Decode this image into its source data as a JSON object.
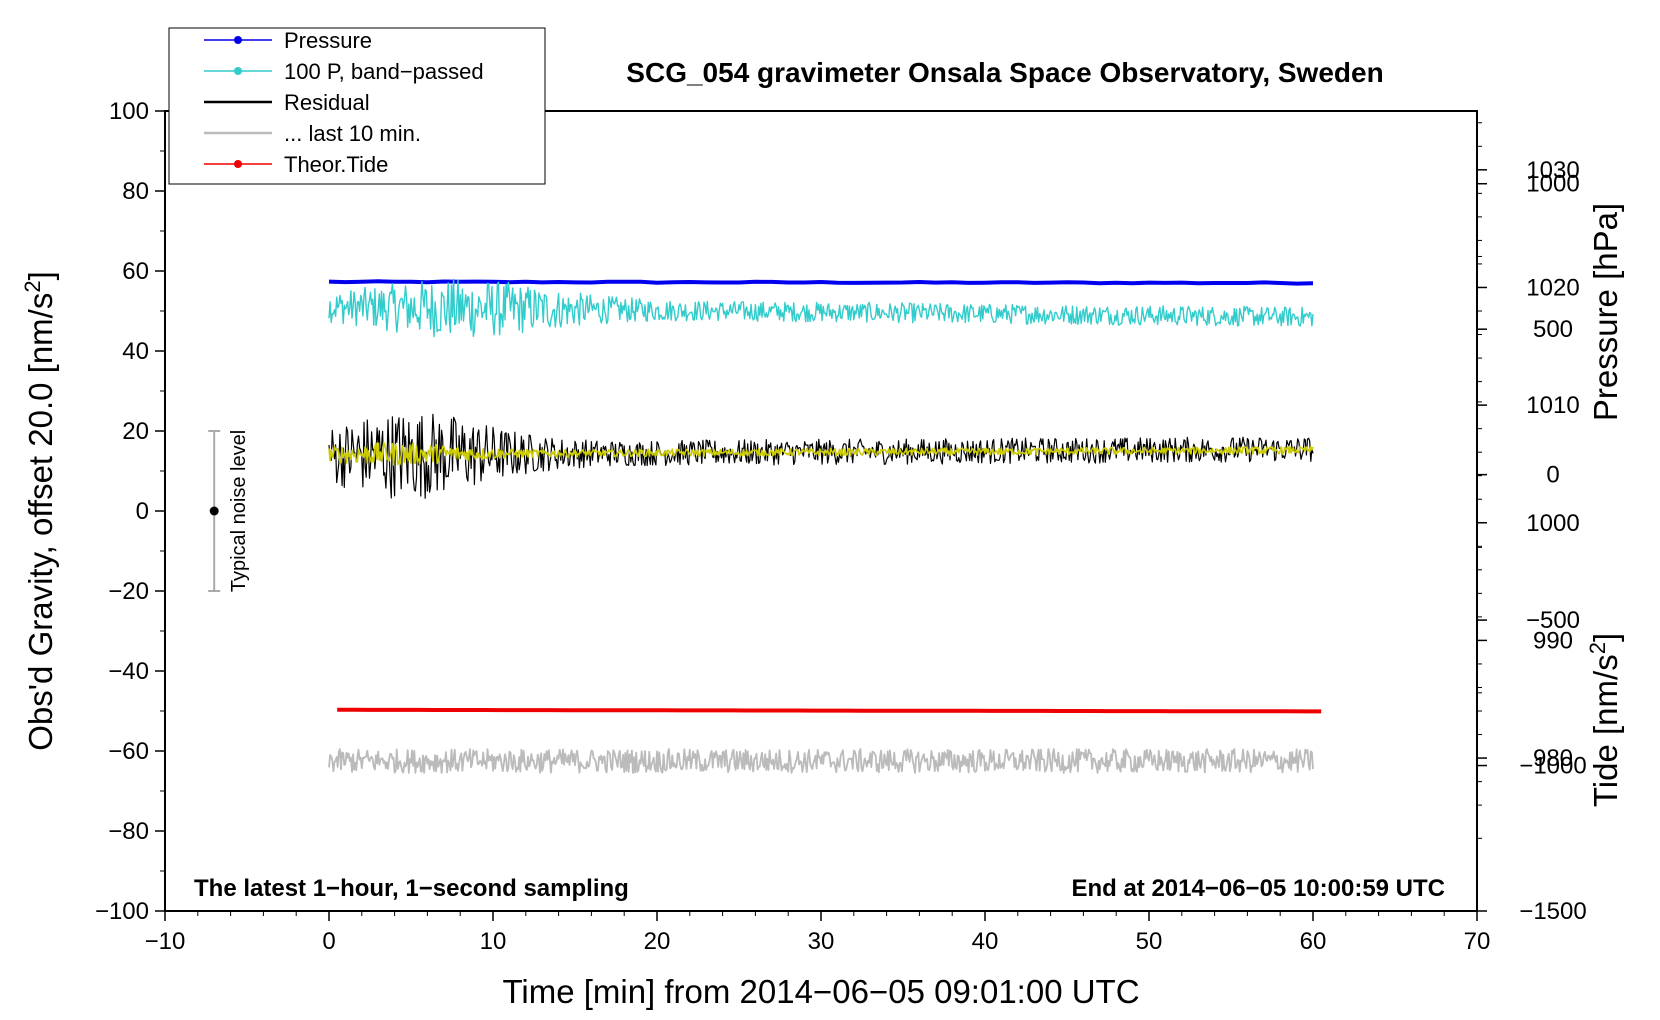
{
  "chart_data": {
    "type": "line",
    "title": "SCG_054 gravimeter Onsala Space Observatory, Sweden",
    "xlabel": "Time [min] from 2014−06−05 09:01:00 UTC",
    "ylabel_left": "Obs'd Gravity, offset 20.0 [nm/s",
    "ylabel_right_top": "Pressure [hPa]",
    "ylabel_right_bottom": "Tide [nm/s",
    "unit_superscript": "2",
    "unit_close": "]",
    "xlim": [
      -10,
      70
    ],
    "ylim": [
      -100,
      100
    ],
    "pressure_axis_range": [
      967,
      1035
    ],
    "tide_axis_range": [
      -1500,
      1250
    ],
    "x_ticks": [
      "−10",
      "0",
      "10",
      "20",
      "30",
      "40",
      "50",
      "60",
      "70"
    ],
    "x_tick_values": [
      -10,
      0,
      10,
      20,
      30,
      40,
      50,
      60,
      70
    ],
    "y_ticks": [
      "100",
      "80",
      "60",
      "40",
      "20",
      "0",
      "−20",
      "−40",
      "−60",
      "−80",
      "−100"
    ],
    "y_tick_values": [
      100,
      80,
      60,
      40,
      20,
      0,
      -20,
      -40,
      -60,
      -80,
      -100
    ],
    "pressure_ticks": [
      "1030",
      "1020",
      "1010",
      "1000",
      "990",
      "980"
    ],
    "pressure_tick_values": [
      1030,
      1020,
      1010,
      1000,
      990,
      980
    ],
    "tide_ticks": [
      "1000",
      "500",
      "0",
      "−500",
      "−1000",
      "−1500"
    ],
    "tide_tick_values": [
      1000,
      500,
      0,
      -500,
      -1000,
      -1500
    ],
    "legend": [
      {
        "label": "Pressure",
        "color": "#0000ee",
        "style": "line-dot"
      },
      {
        "label": "100 P, band−passed",
        "color": "#33cccc",
        "style": "line-dot"
      },
      {
        "label": "Residual",
        "color": "#000000",
        "style": "line"
      },
      {
        "label": "... last 10 min.",
        "color": "#bbbbbb",
        "style": "line"
      },
      {
        "label": "Theor.Tide",
        "color": "#ee0000",
        "style": "line-dot"
      }
    ],
    "legend_position": "top-left",
    "series": [
      {
        "name": "Pressure",
        "color": "#0000ee",
        "x_range": [
          0,
          60
        ],
        "start": 57.3,
        "end": 57.0,
        "noise": 0.15
      },
      {
        "name": "100 P, band-passed",
        "color": "#33cccc",
        "x_range": [
          0,
          60
        ],
        "start": 51.0,
        "end": 48.5,
        "noise": 2.5,
        "burst_center": 8,
        "burst_width": 7,
        "burst_amp": 5
      },
      {
        "name": "Residual",
        "color": "#000000",
        "x_range": [
          0,
          60
        ],
        "start": 14.0,
        "end": 15.5,
        "noise": 3.2,
        "burst_center": 5,
        "burst_width": 6,
        "burst_amp": 8
      },
      {
        "name": "Residual smoothed",
        "color": "#cccc00",
        "x_range": [
          0,
          60
        ],
        "start": 14.2,
        "end": 15.2,
        "noise": 0.9,
        "burst_center": 4,
        "burst_width": 5,
        "burst_amp": 2
      },
      {
        "name": "... last 10 min.",
        "color": "#bbbbbb",
        "x_range": [
          0,
          60
        ],
        "start": -62.5,
        "end": -62.5,
        "noise": 3.0
      },
      {
        "name": "Theor.Tide",
        "color": "#ee0000",
        "x_range": [
          0.5,
          60.5
        ],
        "start": -49.7,
        "end": -50.1,
        "noise": 0.0
      }
    ],
    "noise_bar": {
      "label": "Typical noise level",
      "x": -7,
      "center": 0,
      "low": -20,
      "high": 20
    },
    "annotation_left": "The latest 1−hour, 1−second sampling",
    "annotation_right": "End at 2014−06−05 10:00:59 UTC"
  }
}
